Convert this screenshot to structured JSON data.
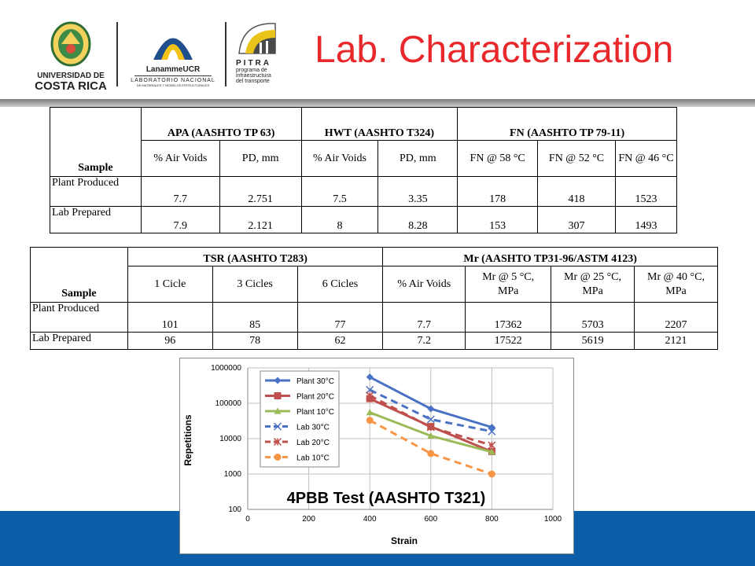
{
  "slide": {
    "title": "Lab. Characterization",
    "brand_colors": {
      "title": "#e8282b",
      "band": "#0d5ea8"
    }
  },
  "logos": {
    "ucr_line1": "UNIVERSIDAD DE",
    "ucr_line2": "COSTA RICA",
    "lanamme_name": "LanammeUCR",
    "lanamme_sub1": "LABORATORIO NACIONAL",
    "lanamme_sub2": "DE MATERIALES Y MODELOS ESTRUCTURALES",
    "pitra_name": "PITRA",
    "pitra_sub1": "programa de",
    "pitra_sub2": "infraestructura",
    "pitra_sub3": "del transporte"
  },
  "table1": {
    "sample_label": "Sample",
    "groups": [
      "APA (AASHTO TP 63)",
      "HWT (AASHTO T324)",
      "FN (AASHTO TP 79-11)"
    ],
    "subheaders": [
      "% Air Voids",
      "PD, mm",
      "% Air Voids",
      "PD, mm",
      "FN @ 58 °C",
      "FN @ 52 °C",
      "FN @ 46 °C"
    ],
    "rows": [
      {
        "label": "Plant Produced",
        "cells": [
          "7.7",
          "2.751",
          "7.5",
          "3.35",
          "178",
          "418",
          "1523"
        ]
      },
      {
        "label": "Lab Prepared",
        "cells": [
          "7.9",
          "2.121",
          "8",
          "8.28",
          "153",
          "307",
          "1493"
        ]
      }
    ]
  },
  "table2": {
    "sample_label": "Sample",
    "groups": [
      "TSR (AASHTO T283)",
      "Mr (AASHTO TP31-96/ASTM 4123)"
    ],
    "subheaders": [
      "1 Cicle",
      "3 Cicles",
      "6 Cicles",
      "% Air Voids",
      "Mr @ 5 °C,",
      "MPa",
      "Mr @ 25 °C,",
      "MPa",
      "Mr @ 40 °C,",
      "MPa"
    ],
    "rows": [
      {
        "label": "Plant Produced",
        "cells": [
          "101",
          "85",
          "77",
          "7.7",
          "17362",
          "5703",
          "2207"
        ]
      },
      {
        "label": "Lab Prepared",
        "cells": [
          "96",
          "78",
          "62",
          "7.2",
          "17522",
          "5619",
          "2121"
        ]
      }
    ]
  },
  "chart_data": {
    "type": "line",
    "title": "4PBB Test (AASHTO T321)",
    "xlabel": "Strain",
    "ylabel": "Repetitions",
    "xlim": [
      0,
      1000
    ],
    "ylim": [
      100,
      1000000
    ],
    "yscale": "log",
    "x_ticks": [
      "0",
      "200",
      "400",
      "600",
      "800",
      "1000"
    ],
    "y_ticks": [
      "100",
      "1000",
      "10000",
      "100000",
      "1000000"
    ],
    "legend_position": "top-left inside",
    "series": [
      {
        "name": "Plant 30°C",
        "color": "#4a72c4",
        "dash": "solid",
        "marker": "diamond",
        "points": [
          [
            400,
            550000
          ],
          [
            600,
            70000
          ],
          [
            800,
            21000
          ]
        ]
      },
      {
        "name": "Plant 20°C",
        "color": "#c0504d",
        "dash": "solid",
        "marker": "square",
        "points": [
          [
            400,
            135000
          ],
          [
            600,
            22000
          ],
          [
            800,
            4300
          ]
        ]
      },
      {
        "name": "Plant 10°C",
        "color": "#9bbb59",
        "dash": "solid",
        "marker": "triangle",
        "points": [
          [
            400,
            55000
          ],
          [
            600,
            12000
          ],
          [
            800,
            4200
          ]
        ]
      },
      {
        "name": "Lab 30°C",
        "color": "#4a72c4",
        "dash": "dashed",
        "marker": "x",
        "points": [
          [
            400,
            240000
          ],
          [
            600,
            35000
          ],
          [
            800,
            16000
          ]
        ]
      },
      {
        "name": "Lab 20°C",
        "color": "#c0504d",
        "dash": "dashed",
        "marker": "asterisk",
        "points": [
          [
            400,
            165000
          ],
          [
            600,
            21000
          ],
          [
            800,
            6500
          ]
        ]
      },
      {
        "name": "Lab 10°C",
        "color": "#f79646",
        "dash": "dashed",
        "marker": "circle",
        "points": [
          [
            400,
            33000
          ],
          [
            600,
            3800
          ],
          [
            800,
            1000
          ]
        ]
      }
    ]
  }
}
